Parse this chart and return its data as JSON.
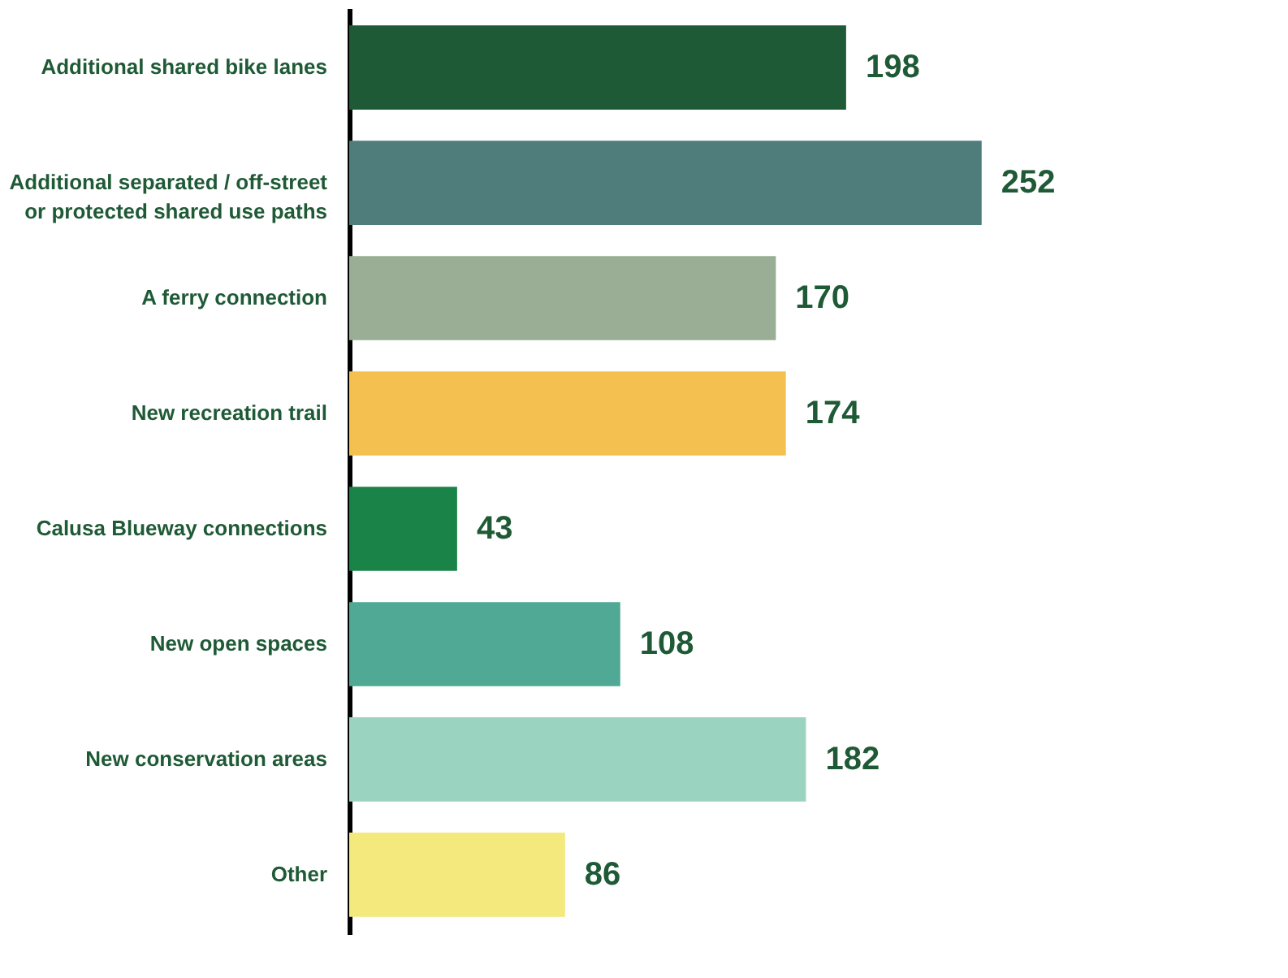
{
  "chart_data": {
    "type": "bar",
    "orientation": "horizontal",
    "data_labels": true,
    "grid": false,
    "legend": false,
    "categories": [
      "Additional shared bike lanes",
      "Additional separated / off-street\nor protected shared use paths",
      "A ferry connection",
      "New recreation trail",
      "Calusa Blueway connections",
      "New open spaces",
      "New conservation areas",
      "Other"
    ],
    "values": [
      198,
      252,
      170,
      174,
      43,
      108,
      182,
      86
    ],
    "colors": [
      "#1f5a36",
      "#4f7d7b",
      "#99ae95",
      "#f4c150",
      "#1a8348",
      "#4fa994",
      "#9ad4c1",
      "#f3e97c"
    ]
  }
}
